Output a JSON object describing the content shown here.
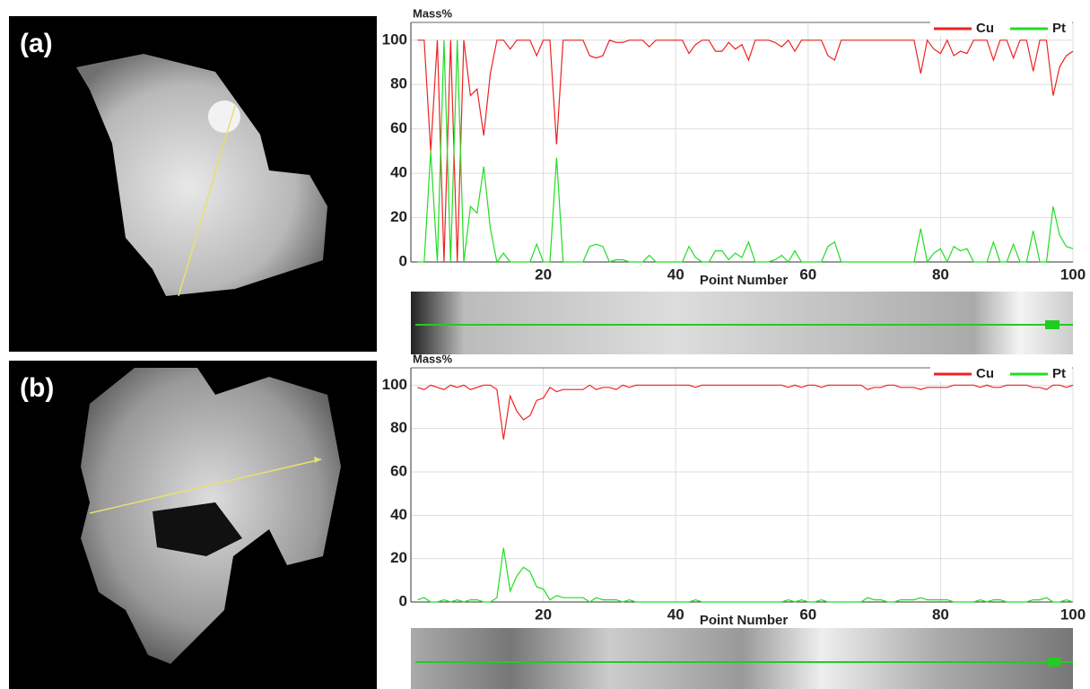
{
  "chart_data": [
    {
      "type": "line",
      "panel_label": "(a)",
      "y_label": "Mass%",
      "x_label": "Point Number",
      "x": [
        1,
        2,
        3,
        4,
        5,
        6,
        7,
        8,
        9,
        10,
        11,
        12,
        13,
        14,
        15,
        16,
        17,
        18,
        19,
        20,
        21,
        22,
        23,
        24,
        25,
        26,
        27,
        28,
        29,
        30,
        31,
        32,
        33,
        34,
        35,
        36,
        37,
        38,
        39,
        40,
        41,
        42,
        43,
        44,
        45,
        46,
        47,
        48,
        49,
        50,
        51,
        52,
        53,
        54,
        55,
        56,
        57,
        58,
        59,
        60,
        61,
        62,
        63,
        64,
        65,
        66,
        67,
        68,
        69,
        70,
        71,
        72,
        73,
        74,
        75,
        76,
        77,
        78,
        79,
        80,
        81,
        82,
        83,
        84,
        85,
        86,
        87,
        88,
        89,
        90,
        91,
        92,
        93,
        94,
        95,
        96,
        97,
        98,
        99,
        100
      ],
      "series": [
        {
          "name": "Cu",
          "color": "#ee2222",
          "values": [
            100,
            100,
            50,
            100,
            0,
            100,
            0,
            100,
            75,
            78,
            57,
            85,
            100,
            100,
            96,
            100,
            100,
            100,
            93,
            100,
            100,
            53,
            100,
            100,
            100,
            100,
            93,
            92,
            93,
            100,
            99,
            99,
            100,
            100,
            100,
            97,
            100,
            100,
            100,
            100,
            100,
            94,
            98,
            100,
            100,
            95,
            95,
            99,
            96,
            98,
            91,
            100,
            100,
            100,
            99,
            97,
            100,
            95,
            100,
            100,
            100,
            100,
            93,
            91,
            100,
            100,
            100,
            100,
            100,
            100,
            100,
            100,
            100,
            100,
            100,
            100,
            85,
            100,
            96,
            94,
            100,
            93,
            95,
            94,
            100,
            100,
            100,
            91,
            100,
            100,
            92,
            100,
            100,
            86,
            100,
            100,
            75,
            88,
            93,
            95
          ]
        },
        {
          "name": "Pt",
          "color": "#22dd22",
          "values": [
            0,
            0,
            50,
            0,
            100,
            0,
            100,
            0,
            25,
            22,
            43,
            15,
            0,
            4,
            0,
            0,
            0,
            0,
            8,
            0,
            0,
            47,
            0,
            0,
            0,
            0,
            7,
            8,
            7,
            0,
            1,
            1,
            0,
            0,
            0,
            3,
            0,
            0,
            0,
            0,
            0,
            7,
            2,
            0,
            0,
            5,
            5,
            1,
            4,
            2,
            9,
            0,
            0,
            0,
            1,
            3,
            0,
            5,
            0,
            0,
            0,
            0,
            7,
            9,
            0,
            0,
            0,
            0,
            0,
            0,
            0,
            0,
            0,
            0,
            0,
            0,
            15,
            0,
            4,
            6,
            0,
            7,
            5,
            6,
            0,
            0,
            0,
            9,
            0,
            0,
            8,
            0,
            0,
            14,
            0,
            0,
            25,
            12,
            7,
            6
          ]
        }
      ],
      "xlim": [
        0,
        100
      ],
      "xticks": [
        20,
        40,
        60,
        80,
        100
      ],
      "ylim": [
        0,
        108
      ],
      "yticks": [
        0,
        20,
        40,
        60,
        80,
        100
      ],
      "grid": true,
      "legend": "upper right"
    },
    {
      "type": "line",
      "panel_label": "(b)",
      "y_label": "Mass%",
      "x_label": "Point Number",
      "x": [
        1,
        2,
        3,
        4,
        5,
        6,
        7,
        8,
        9,
        10,
        11,
        12,
        13,
        14,
        15,
        16,
        17,
        18,
        19,
        20,
        21,
        22,
        23,
        24,
        25,
        26,
        27,
        28,
        29,
        30,
        31,
        32,
        33,
        34,
        35,
        36,
        37,
        38,
        39,
        40,
        41,
        42,
        43,
        44,
        45,
        46,
        47,
        48,
        49,
        50,
        51,
        52,
        53,
        54,
        55,
        56,
        57,
        58,
        59,
        60,
        61,
        62,
        63,
        64,
        65,
        66,
        67,
        68,
        69,
        70,
        71,
        72,
        73,
        74,
        75,
        76,
        77,
        78,
        79,
        80,
        81,
        82,
        83,
        84,
        85,
        86,
        87,
        88,
        89,
        90,
        91,
        92,
        93,
        94,
        95,
        96,
        97,
        98,
        99,
        100
      ],
      "series": [
        {
          "name": "Cu",
          "color": "#ee2222",
          "values": [
            99,
            98,
            100,
            99,
            98,
            100,
            99,
            100,
            98,
            99,
            100,
            100,
            98,
            75,
            95,
            88,
            84,
            86,
            93,
            94,
            99,
            97,
            98,
            98,
            98,
            98,
            100,
            98,
            99,
            99,
            98,
            100,
            99,
            100,
            100,
            100,
            100,
            100,
            100,
            100,
            100,
            100,
            99,
            100,
            100,
            100,
            100,
            100,
            100,
            100,
            100,
            100,
            100,
            100,
            100,
            100,
            99,
            100,
            99,
            100,
            100,
            99,
            100,
            100,
            100,
            100,
            100,
            100,
            98,
            99,
            99,
            100,
            100,
            99,
            99,
            99,
            98,
            99,
            99,
            99,
            99,
            100,
            100,
            100,
            100,
            99,
            100,
            99,
            99,
            100,
            100,
            100,
            100,
            99,
            99,
            98,
            100,
            100,
            99,
            100
          ]
        },
        {
          "name": "Pt",
          "color": "#22dd22",
          "values": [
            1,
            2,
            0,
            0,
            1,
            0,
            1,
            0,
            1,
            1,
            0,
            0,
            2,
            25,
            5,
            12,
            16,
            14,
            7,
            6,
            1,
            3,
            2,
            2,
            2,
            2,
            0,
            2,
            1,
            1,
            1,
            0,
            1,
            0,
            0,
            0,
            0,
            0,
            0,
            0,
            0,
            0,
            1,
            0,
            0,
            0,
            0,
            0,
            0,
            0,
            0,
            0,
            0,
            0,
            0,
            0,
            1,
            0,
            1,
            0,
            0,
            1,
            0,
            0,
            0,
            0,
            0,
            0,
            2,
            1,
            1,
            0,
            0,
            1,
            1,
            1,
            2,
            1,
            1,
            1,
            1,
            0,
            0,
            0,
            0,
            1,
            0,
            1,
            1,
            0,
            0,
            0,
            0,
            1,
            1,
            2,
            0,
            0,
            1,
            0
          ]
        }
      ],
      "xlim": [
        0,
        100
      ],
      "xticks": [
        20,
        40,
        60,
        80,
        100
      ],
      "ylim": [
        0,
        108
      ],
      "yticks": [
        0,
        20,
        40,
        60,
        80,
        100
      ],
      "grid": true,
      "legend": "upper right"
    }
  ]
}
